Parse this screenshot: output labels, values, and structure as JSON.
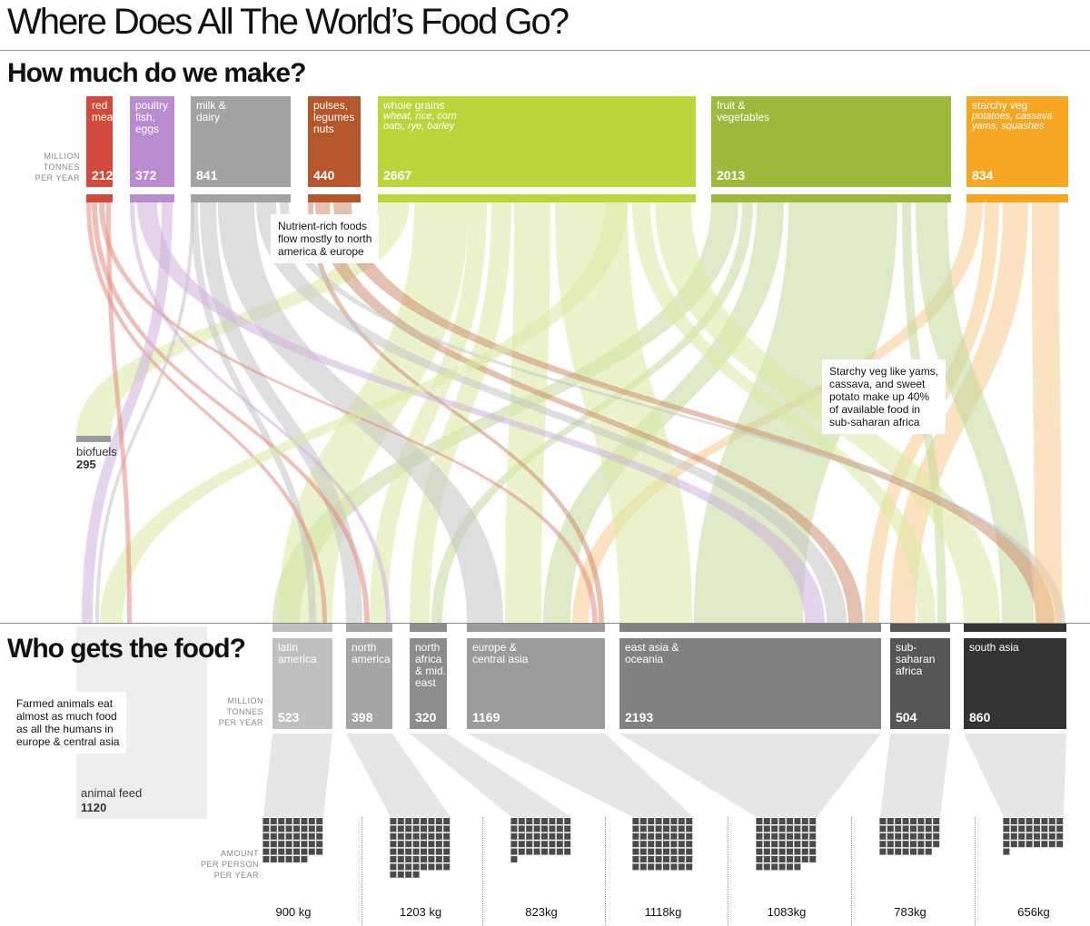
{
  "title": "Where Does All The World’s Food Go?",
  "section_production": "How much do we make?",
  "section_consumption": "Who gets the food?",
  "units_production": [
    "MILLION",
    "TONNES",
    "PER YEAR"
  ],
  "units_consumption": [
    "MILLION",
    "TONNES",
    "PER YEAR"
  ],
  "units_per_person": [
    "AMOUNT",
    "PER PERSON",
    "PER YEAR"
  ],
  "sources": [
    {
      "lines": [
        "red",
        "meat"
      ],
      "sub": [],
      "value": "212",
      "color": "#d24a3b",
      "flow": "#e68b80"
    },
    {
      "lines": [
        "poultry",
        "fish,",
        "eggs"
      ],
      "sub": [],
      "value": "372",
      "color": "#b98ccf",
      "flow": "#cfb0dd"
    },
    {
      "lines": [
        "milk &",
        "dairy"
      ],
      "sub": [],
      "value": "841",
      "color": "#a3a3a3",
      "flow": "#c4c4c4"
    },
    {
      "lines": [
        "pulses,",
        "legumes",
        "nuts"
      ],
      "sub": [],
      "value": "440",
      "color": "#b5562c",
      "flow": "#cf8e6e"
    },
    {
      "lines": [
        "whole grains"
      ],
      "sub": [
        "wheat, rice, corn",
        "oats, rye, barley"
      ],
      "value": "2667",
      "color": "#bcd53a",
      "flow": "#dbe9a3"
    },
    {
      "lines": [
        "fruit &",
        "vegetables"
      ],
      "sub": [],
      "value": "2013",
      "color": "#9cba3c",
      "flow": "#c3d99a"
    },
    {
      "lines": [
        "starchy veg"
      ],
      "sub": [
        "potatoes, cassava",
        "yams, squashes"
      ],
      "value": "834",
      "color": "#f5a623",
      "flow": "#f8cc8e"
    }
  ],
  "biofuels": {
    "label": "biofuels",
    "value": "295"
  },
  "animal_feed": {
    "label": "animal feed",
    "value": "1120"
  },
  "regions": [
    {
      "lines": [
        "latin",
        "america"
      ],
      "value": "523",
      "kg": "900 kg",
      "color": "#c0c0c0",
      "squares": 46
    },
    {
      "lines": [
        "north",
        "america"
      ],
      "value": "398",
      "kg": "1203 kg",
      "color": "#a5a5a5",
      "squares": 60
    },
    {
      "lines": [
        "north",
        "africa",
        "& mid.",
        "east"
      ],
      "value": "320",
      "kg": "823kg",
      "color": "#8c8c8c",
      "squares": 41
    },
    {
      "lines": [
        "europe &",
        "central asia"
      ],
      "value": "1169",
      "kg": "1118kg",
      "color": "#9b9b9b",
      "squares": 56
    },
    {
      "lines": [
        "east asia &",
        "oceania"
      ],
      "value": "2193",
      "kg": "1083kg",
      "color": "#818181",
      "squares": 54
    },
    {
      "lines": [
        "sub-",
        "saharan",
        "africa"
      ],
      "value": "504",
      "kg": "783kg",
      "color": "#565656",
      "squares": 39
    },
    {
      "lines": [
        "south asia"
      ],
      "value": "860",
      "kg": "656kg",
      "color": "#333333",
      "squares": 33
    }
  ],
  "callouts": {
    "nutrient": [
      "Nutrient-rich foods",
      "flow mostly to north",
      "america & europe"
    ],
    "starchy": [
      "Starchy veg like yams,",
      "cassava, and sweet",
      "potato make up 40%",
      "of available food in",
      "sub-saharan africa"
    ],
    "animals": [
      "Farmed animals eat",
      "almost as much food",
      "as all the humans in",
      "europe & central asia"
    ]
  }
}
